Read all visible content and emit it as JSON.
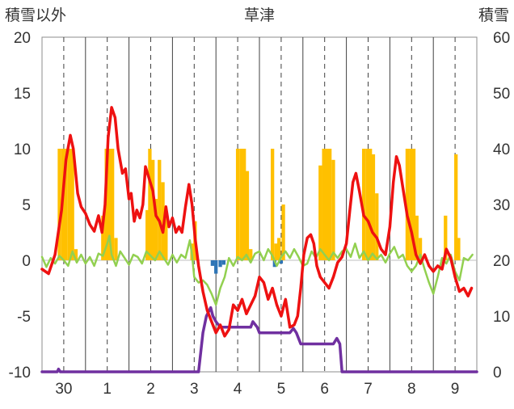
{
  "chart_data": {
    "type": "line",
    "title": "草津",
    "y_left_label": "積雪以外",
    "y_right_label": "積雪",
    "y_left": {
      "range": [
        -10,
        20
      ],
      "ticks": [
        20,
        15,
        10,
        5,
        0,
        -5,
        -10
      ]
    },
    "y_right": {
      "range": [
        0,
        60
      ],
      "ticks": [
        60,
        50,
        40,
        30,
        20,
        10,
        0
      ]
    },
    "x": {
      "range": [
        0,
        10
      ],
      "tick_labels": [
        "30",
        "1",
        "2",
        "3",
        "4",
        "5",
        "6",
        "7",
        "8",
        "9"
      ],
      "tick_positions": [
        0.5,
        1.5,
        2.5,
        3.5,
        4.5,
        5.5,
        6.5,
        7.5,
        8.5,
        9.5
      ]
    },
    "grid": "vertical dashed at day centers, solid at day boundaries",
    "legend": "none",
    "colors": {
      "temperature": "#ee1111",
      "precip_snow": "#ffc000",
      "precip_rain": "#2e75b6",
      "humidity": "#92d050",
      "snow_depth": "#7030a0"
    },
    "series_temperature": [
      [
        0.0,
        -0.8
      ],
      [
        0.15,
        -1.2
      ],
      [
        0.3,
        0.5
      ],
      [
        0.45,
        4.5
      ],
      [
        0.55,
        9.0
      ],
      [
        0.65,
        11.2
      ],
      [
        0.72,
        10.0
      ],
      [
        0.82,
        6.0
      ],
      [
        0.9,
        4.8
      ],
      [
        1.0,
        4.2
      ],
      [
        1.1,
        3.2
      ],
      [
        1.2,
        2.6
      ],
      [
        1.3,
        4.0
      ],
      [
        1.38,
        2.5
      ],
      [
        1.45,
        5.0
      ],
      [
        1.52,
        11.0
      ],
      [
        1.6,
        13.7
      ],
      [
        1.68,
        12.8
      ],
      [
        1.75,
        10.0
      ],
      [
        1.85,
        7.8
      ],
      [
        1.92,
        8.2
      ],
      [
        2.0,
        5.5
      ],
      [
        2.05,
        6.0
      ],
      [
        2.12,
        3.5
      ],
      [
        2.18,
        4.5
      ],
      [
        2.25,
        3.8
      ],
      [
        2.32,
        5.0
      ],
      [
        2.38,
        8.4
      ],
      [
        2.45,
        7.5
      ],
      [
        2.55,
        6.2
      ],
      [
        2.62,
        4.0
      ],
      [
        2.7,
        3.5
      ],
      [
        2.78,
        2.5
      ],
      [
        2.85,
        4.8
      ],
      [
        2.92,
        3.0
      ],
      [
        3.0,
        3.8
      ],
      [
        3.08,
        2.5
      ],
      [
        3.15,
        3.0
      ],
      [
        3.22,
        2.5
      ],
      [
        3.3,
        4.8
      ],
      [
        3.38,
        6.8
      ],
      [
        3.45,
        5.0
      ],
      [
        3.52,
        2.0
      ],
      [
        3.6,
        -0.5
      ],
      [
        3.7,
        -2.8
      ],
      [
        3.8,
        -4.5
      ],
      [
        3.9,
        -5.5
      ],
      [
        4.0,
        -6.5
      ],
      [
        4.1,
        -5.8
      ],
      [
        4.2,
        -6.8
      ],
      [
        4.3,
        -6.2
      ],
      [
        4.4,
        -4.0
      ],
      [
        4.5,
        -4.5
      ],
      [
        4.6,
        -3.5
      ],
      [
        4.7,
        -4.8
      ],
      [
        4.8,
        -4.0
      ],
      [
        4.9,
        -3.2
      ],
      [
        5.0,
        -1.5
      ],
      [
        5.1,
        -2.0
      ],
      [
        5.2,
        -3.5
      ],
      [
        5.3,
        -2.5
      ],
      [
        5.4,
        -4.0
      ],
      [
        5.5,
        -5.0
      ],
      [
        5.6,
        -3.5
      ],
      [
        5.7,
        -6.0
      ],
      [
        5.8,
        -5.8
      ],
      [
        5.88,
        -5.0
      ],
      [
        5.95,
        -2.5
      ],
      [
        6.02,
        0.5
      ],
      [
        6.1,
        2.0
      ],
      [
        6.18,
        2.3
      ],
      [
        6.25,
        1.5
      ],
      [
        6.32,
        -0.5
      ],
      [
        6.4,
        -1.5
      ],
      [
        6.5,
        -2.0
      ],
      [
        6.6,
        -2.5
      ],
      [
        6.7,
        -1.5
      ],
      [
        6.8,
        -0.2
      ],
      [
        6.9,
        0.3
      ],
      [
        7.0,
        1.5
      ],
      [
        7.08,
        4.5
      ],
      [
        7.15,
        7.0
      ],
      [
        7.22,
        7.8
      ],
      [
        7.3,
        6.2
      ],
      [
        7.4,
        4.0
      ],
      [
        7.5,
        3.5
      ],
      [
        7.6,
        2.5
      ],
      [
        7.7,
        2.0
      ],
      [
        7.8,
        1.0
      ],
      [
        7.9,
        0.5
      ],
      [
        8.0,
        3.0
      ],
      [
        8.08,
        7.0
      ],
      [
        8.15,
        9.3
      ],
      [
        8.22,
        8.5
      ],
      [
        8.3,
        6.5
      ],
      [
        8.4,
        4.0
      ],
      [
        8.5,
        2.5
      ],
      [
        8.6,
        0.5
      ],
      [
        8.7,
        -0.3
      ],
      [
        8.8,
        0.5
      ],
      [
        8.9,
        -0.5
      ],
      [
        9.0,
        -1.0
      ],
      [
        9.1,
        -0.5
      ],
      [
        9.2,
        -0.8
      ],
      [
        9.3,
        1.0
      ],
      [
        9.4,
        0.2
      ],
      [
        9.5,
        -1.5
      ],
      [
        9.6,
        -2.8
      ],
      [
        9.7,
        -2.5
      ],
      [
        9.8,
        -3.2
      ],
      [
        9.88,
        -2.5
      ]
    ],
    "series_humidity": [
      [
        0.0,
        0.3
      ],
      [
        0.1,
        -0.6
      ],
      [
        0.2,
        0.2
      ],
      [
        0.3,
        -0.3
      ],
      [
        0.4,
        0.4
      ],
      [
        0.5,
        0.0
      ],
      [
        0.6,
        -0.5
      ],
      [
        0.7,
        0.8
      ],
      [
        0.8,
        -0.2
      ],
      [
        0.9,
        0.5
      ],
      [
        1.0,
        -0.3
      ],
      [
        1.1,
        0.3
      ],
      [
        1.2,
        -0.5
      ],
      [
        1.3,
        0.6
      ],
      [
        1.4,
        0.4
      ],
      [
        1.5,
        1.5
      ],
      [
        1.55,
        2.2
      ],
      [
        1.6,
        0.5
      ],
      [
        1.7,
        -0.5
      ],
      [
        1.8,
        0.8
      ],
      [
        1.9,
        0.2
      ],
      [
        2.0,
        -0.4
      ],
      [
        2.1,
        0.5
      ],
      [
        2.2,
        0.3
      ],
      [
        2.3,
        -0.3
      ],
      [
        2.4,
        0.8
      ],
      [
        2.5,
        0.4
      ],
      [
        2.6,
        0.0
      ],
      [
        2.7,
        0.8
      ],
      [
        2.8,
        0.2
      ],
      [
        2.9,
        -0.4
      ],
      [
        3.0,
        0.5
      ],
      [
        3.1,
        -0.2
      ],
      [
        3.2,
        0.5
      ],
      [
        3.3,
        0.2
      ],
      [
        3.4,
        1.8
      ],
      [
        3.45,
        0.5
      ],
      [
        3.5,
        -1.5
      ],
      [
        3.6,
        -2.0
      ],
      [
        3.7,
        -1.8
      ],
      [
        3.8,
        -2.2
      ],
      [
        3.9,
        -3.0
      ],
      [
        4.0,
        -4.0
      ],
      [
        4.1,
        -2.5
      ],
      [
        4.2,
        -1.5
      ],
      [
        4.3,
        0.2
      ],
      [
        4.4,
        -0.5
      ],
      [
        4.5,
        0.3
      ],
      [
        4.6,
        0.0
      ],
      [
        4.7,
        0.5
      ],
      [
        4.8,
        -0.2
      ],
      [
        4.9,
        0.6
      ],
      [
        5.0,
        0.8
      ],
      [
        5.1,
        0.0
      ],
      [
        5.2,
        1.0
      ],
      [
        5.3,
        0.4
      ],
      [
        5.4,
        -0.5
      ],
      [
        5.5,
        0.3
      ],
      [
        5.6,
        0.8
      ],
      [
        5.7,
        0.2
      ],
      [
        5.8,
        1.0
      ],
      [
        5.9,
        0.3
      ],
      [
        6.0,
        -0.5
      ],
      [
        6.1,
        -0.3
      ],
      [
        6.2,
        0.8
      ],
      [
        6.3,
        0.2
      ],
      [
        6.4,
        1.0
      ],
      [
        6.5,
        0.5
      ],
      [
        6.6,
        0.0
      ],
      [
        6.7,
        0.7
      ],
      [
        6.8,
        0.2
      ],
      [
        6.9,
        0.8
      ],
      [
        7.0,
        1.0
      ],
      [
        7.1,
        0.3
      ],
      [
        7.2,
        1.5
      ],
      [
        7.3,
        0.2
      ],
      [
        7.4,
        0.8
      ],
      [
        7.5,
        0.0
      ],
      [
        7.6,
        0.6
      ],
      [
        7.7,
        0.1
      ],
      [
        7.8,
        0.5
      ],
      [
        7.9,
        -0.2
      ],
      [
        8.0,
        0.6
      ],
      [
        8.1,
        1.2
      ],
      [
        8.2,
        0.2
      ],
      [
        8.3,
        0.5
      ],
      [
        8.4,
        -0.5
      ],
      [
        8.5,
        -1.0
      ],
      [
        8.6,
        -0.5
      ],
      [
        8.7,
        0.5
      ],
      [
        8.8,
        -0.8
      ],
      [
        8.9,
        -2.0
      ],
      [
        9.0,
        -3.0
      ],
      [
        9.1,
        -1.5
      ],
      [
        9.2,
        0.2
      ],
      [
        9.3,
        -0.3
      ],
      [
        9.4,
        0.5
      ],
      [
        9.5,
        -1.0
      ],
      [
        9.6,
        -1.8
      ],
      [
        9.7,
        0.2
      ],
      [
        9.8,
        0.0
      ],
      [
        9.9,
        0.5
      ]
    ],
    "series_snow_depth": [
      [
        0.0,
        0
      ],
      [
        0.35,
        0
      ],
      [
        0.38,
        0.5
      ],
      [
        0.42,
        0
      ],
      [
        3.6,
        0
      ],
      [
        3.7,
        7
      ],
      [
        3.78,
        10
      ],
      [
        3.88,
        11.5
      ],
      [
        3.93,
        10
      ],
      [
        4.0,
        9
      ],
      [
        4.1,
        8
      ],
      [
        4.4,
        8
      ],
      [
        4.5,
        8
      ],
      [
        4.8,
        8
      ],
      [
        4.85,
        9
      ],
      [
        4.95,
        8
      ],
      [
        5.0,
        7
      ],
      [
        5.1,
        7
      ],
      [
        5.7,
        7
      ],
      [
        5.78,
        7.8
      ],
      [
        5.85,
        7
      ],
      [
        5.95,
        5
      ],
      [
        6.0,
        5
      ],
      [
        6.7,
        5
      ],
      [
        6.78,
        6
      ],
      [
        6.85,
        5
      ],
      [
        6.9,
        0
      ],
      [
        10.0,
        0
      ]
    ],
    "series_precip_snow": [
      [
        0.4,
        40
      ],
      [
        0.48,
        40
      ],
      [
        0.54,
        40
      ],
      [
        0.62,
        40
      ],
      [
        0.7,
        40
      ],
      [
        0.78,
        22
      ],
      [
        0.85,
        20
      ],
      [
        1.4,
        28
      ],
      [
        1.48,
        40
      ],
      [
        1.55,
        40
      ],
      [
        1.62,
        40
      ],
      [
        1.7,
        24
      ],
      [
        2.42,
        29
      ],
      [
        2.48,
        40
      ],
      [
        2.55,
        38
      ],
      [
        2.62,
        31
      ],
      [
        2.7,
        38
      ],
      [
        2.78,
        34
      ],
      [
        2.85,
        28
      ],
      [
        3.45,
        23
      ],
      [
        3.52,
        27
      ],
      [
        4.5,
        40
      ],
      [
        4.58,
        40
      ],
      [
        4.65,
        40
      ],
      [
        4.72,
        36
      ],
      [
        4.8,
        22
      ],
      [
        5.3,
        40
      ],
      [
        5.38,
        23
      ],
      [
        5.45,
        24
      ],
      [
        5.55,
        30
      ],
      [
        6.4,
        37
      ],
      [
        6.48,
        40
      ],
      [
        6.55,
        40
      ],
      [
        6.62,
        40
      ],
      [
        6.7,
        38
      ],
      [
        7.4,
        40
      ],
      [
        7.48,
        40
      ],
      [
        7.55,
        40
      ],
      [
        7.62,
        39
      ],
      [
        7.7,
        32
      ],
      [
        8.4,
        40
      ],
      [
        8.48,
        40
      ],
      [
        8.55,
        40
      ],
      [
        8.62,
        28
      ],
      [
        8.7,
        24
      ],
      [
        9.28,
        28
      ],
      [
        9.45,
        20
      ],
      [
        9.52,
        39
      ],
      [
        9.58,
        24
      ]
    ],
    "series_precip_rain": [
      [
        3.92,
        -0.5
      ],
      [
        4.0,
        -1.2
      ],
      [
        4.1,
        -0.6
      ],
      [
        4.18,
        -0.4
      ],
      [
        5.35,
        -0.6
      ],
      [
        5.5,
        -0.3
      ]
    ]
  }
}
